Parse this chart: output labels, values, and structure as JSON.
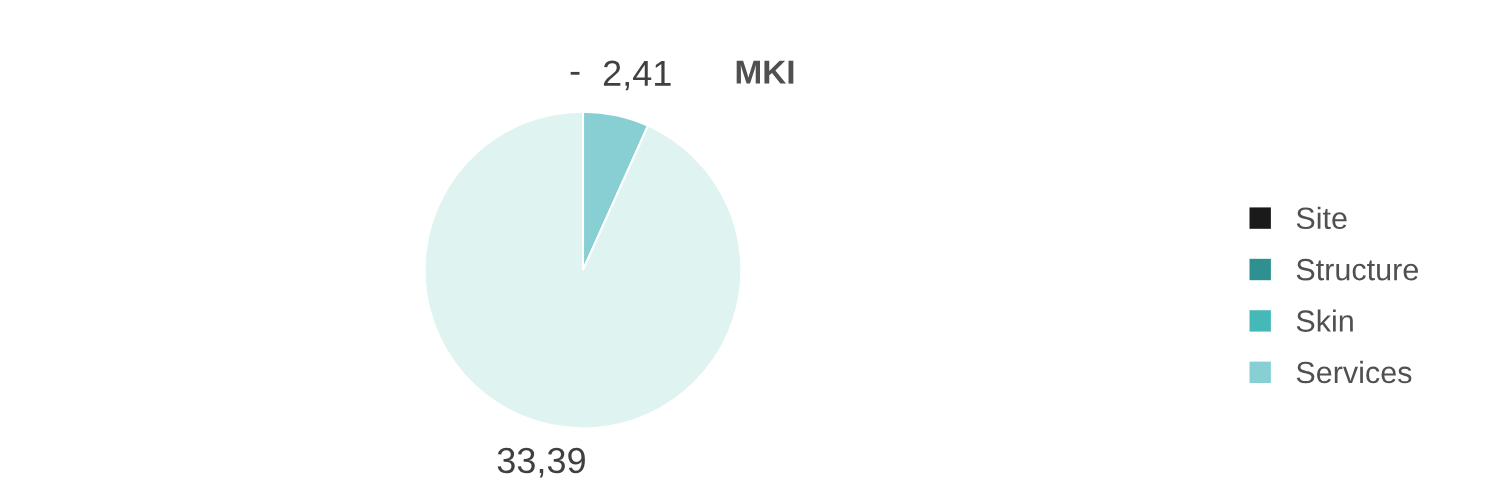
{
  "chart_data": {
    "type": "pie",
    "title": "MKI",
    "categories": [
      "Site",
      "Structure",
      "Skin",
      "Services",
      null
    ],
    "values": [
      0,
      0,
      0,
      2.41,
      33.39
    ],
    "colors": [
      "#1a1a1a",
      "#2e9090",
      "#45b8b8",
      "#88cfd4",
      "#dff3f0"
    ],
    "value_labels": [
      null,
      null,
      "-",
      "2,41",
      "33,39"
    ],
    "legend": "right"
  }
}
